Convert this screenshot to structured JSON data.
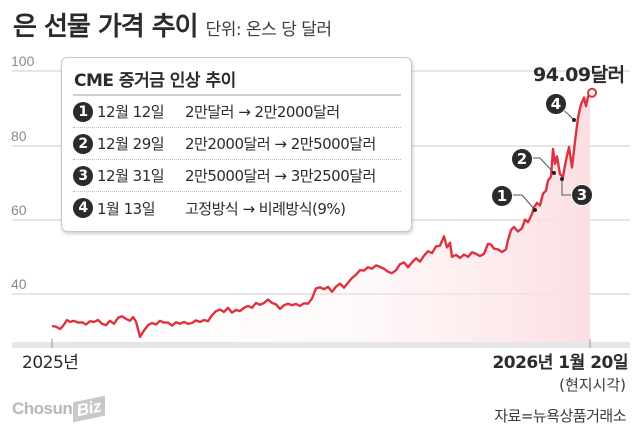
{
  "header": {
    "title": "은 선물 가격 추이",
    "unit": "단위: 온스 당 달러"
  },
  "legend": {
    "title": "CME 증거금 인상 추이",
    "rows": [
      {
        "num": "1",
        "date": "12월 12일",
        "change": "2만달러 → 2만2000달러"
      },
      {
        "num": "2",
        "date": "12월 29일",
        "change": "2만2000달러 → 2만5000달러"
      },
      {
        "num": "3",
        "date": "12월 31일",
        "change": "2만5000달러 → 3만2500달러"
      },
      {
        "num": "4",
        "date": "1월 13일",
        "change": "고정방식 → 비례방식(9%)"
      }
    ]
  },
  "y_axis": {
    "ticks": [
      "100",
      "80",
      "60",
      "40"
    ]
  },
  "x_axis": {
    "start_label": "2025년",
    "end_label": "2026년 1월 20일",
    "end_sub": "(현지시각)"
  },
  "final_value_label": "94.09달러",
  "markers": [
    "1",
    "2",
    "3",
    "4"
  ],
  "footer": {
    "logo_main": "Chosun",
    "logo_biz": "Biz",
    "source": "자료=뉴욕상품거래소"
  },
  "colors": {
    "line": "#e0313f",
    "area": "#fde8ea",
    "grid": "#cccccc",
    "text": "#2b2b2b",
    "marker": "#2b2b2b"
  },
  "chart_data": {
    "type": "line",
    "title": "은 선물 가격 추이",
    "subtitle": "단위: 온스 당 달러",
    "xlabel": "",
    "ylabel": "달러/온스",
    "ylim": [
      30,
      100
    ],
    "yticks": [
      40,
      60,
      80,
      100
    ],
    "grid": true,
    "x_range": [
      "2025년",
      "2026년 1월 20일"
    ],
    "series": [
      {
        "name": "은 선물",
        "points": [
          [
            52,
            31.4
          ],
          [
            56,
            31.2
          ],
          [
            60,
            30.6
          ],
          [
            63,
            31.4
          ],
          [
            67,
            33.0
          ],
          [
            70,
            32.5
          ],
          [
            74,
            32.8
          ],
          [
            78,
            32.3
          ],
          [
            82,
            32.4
          ],
          [
            86,
            31.8
          ],
          [
            90,
            32.7
          ],
          [
            94,
            32.5
          ],
          [
            98,
            33.0
          ],
          [
            102,
            32.0
          ],
          [
            106,
            31.6
          ],
          [
            110,
            32.8
          ],
          [
            114,
            32.0
          ],
          [
            118,
            33.6
          ],
          [
            122,
            34.0
          ],
          [
            126,
            33.3
          ],
          [
            130,
            32.8
          ],
          [
            133,
            33.8
          ],
          [
            136,
            32.6
          ],
          [
            140,
            28.5
          ],
          [
            144,
            30.2
          ],
          [
            148,
            31.6
          ],
          [
            152,
            32.2
          ],
          [
            156,
            31.8
          ],
          [
            160,
            32.8
          ],
          [
            164,
            32.3
          ],
          [
            168,
            32.3
          ],
          [
            172,
            31.5
          ],
          [
            176,
            32.4
          ],
          [
            180,
            32.0
          ],
          [
            184,
            32.5
          ],
          [
            188,
            32.0
          ],
          [
            192,
            32.2
          ],
          [
            196,
            32.9
          ],
          [
            200,
            32.5
          ],
          [
            204,
            33.0
          ],
          [
            208,
            32.7
          ],
          [
            212,
            34.3
          ],
          [
            216,
            35.4
          ],
          [
            220,
            35.8
          ],
          [
            224,
            35.2
          ],
          [
            228,
            36.3
          ],
          [
            232,
            35.0
          ],
          [
            236,
            35.7
          ],
          [
            240,
            35.4
          ],
          [
            244,
            36.3
          ],
          [
            248,
            36.8
          ],
          [
            252,
            36.3
          ],
          [
            256,
            37.6
          ],
          [
            260,
            37.1
          ],
          [
            264,
            37.6
          ],
          [
            268,
            38.5
          ],
          [
            272,
            37.6
          ],
          [
            276,
            37.2
          ],
          [
            280,
            36.0
          ],
          [
            284,
            37.0
          ],
          [
            288,
            37.4
          ],
          [
            292,
            37.0
          ],
          [
            296,
            37.3
          ],
          [
            300,
            36.8
          ],
          [
            304,
            37.5
          ],
          [
            308,
            37.4
          ],
          [
            312,
            38.8
          ],
          [
            316,
            41.5
          ],
          [
            320,
            41.8
          ],
          [
            324,
            41.3
          ],
          [
            328,
            41.9
          ],
          [
            332,
            40.6
          ],
          [
            336,
            42.0
          ],
          [
            340,
            42.8
          ],
          [
            344,
            41.7
          ],
          [
            348,
            43.0
          ],
          [
            352,
            44.3
          ],
          [
            356,
            45.2
          ],
          [
            360,
            46.4
          ],
          [
            364,
            46.3
          ],
          [
            368,
            47.2
          ],
          [
            372,
            46.8
          ],
          [
            376,
            47.7
          ],
          [
            380,
            47.3
          ],
          [
            384,
            46.8
          ],
          [
            388,
            46.0
          ],
          [
            392,
            45.6
          ],
          [
            396,
            46.4
          ],
          [
            400,
            48.0
          ],
          [
            404,
            48.5
          ],
          [
            408,
            47.2
          ],
          [
            412,
            48.5
          ],
          [
            416,
            49.6
          ],
          [
            420,
            48.7
          ],
          [
            424,
            50.3
          ],
          [
            428,
            51.5
          ],
          [
            432,
            51.0
          ],
          [
            436,
            52.8
          ],
          [
            440,
            53.0
          ],
          [
            444,
            55.5
          ],
          [
            447,
            52.5
          ],
          [
            450,
            53.8
          ],
          [
            452,
            50.0
          ],
          [
            456,
            50.5
          ],
          [
            460,
            49.7
          ],
          [
            464,
            50.6
          ],
          [
            468,
            50.0
          ],
          [
            472,
            51.2
          ],
          [
            476,
            50.8
          ],
          [
            480,
            50.2
          ],
          [
            484,
            50.8
          ],
          [
            488,
            53.5
          ],
          [
            491,
            53.3
          ],
          [
            494,
            52.2
          ],
          [
            498,
            52.0
          ],
          [
            502,
            51.3
          ],
          [
            506,
            52.0
          ],
          [
            508,
            54.5
          ],
          [
            511,
            57.2
          ],
          [
            514,
            58.0
          ],
          [
            518,
            56.8
          ],
          [
            522,
            57.7
          ],
          [
            525,
            60.0
          ],
          [
            528,
            59.3
          ],
          [
            532,
            61.5
          ],
          [
            534,
            63.3
          ],
          [
            537,
            64.5
          ],
          [
            540,
            63.8
          ],
          [
            543,
            67.0
          ],
          [
            546,
            67.8
          ],
          [
            548,
            70.5
          ],
          [
            551,
            71.5
          ],
          [
            553,
            79.0
          ],
          [
            555,
            75.0
          ],
          [
            557,
            77.0
          ],
          [
            560,
            72.2
          ],
          [
            563,
            71.5
          ],
          [
            566,
            76.0
          ],
          [
            569,
            79.5
          ],
          [
            572,
            74.0
          ],
          [
            575,
            81.0
          ],
          [
            578,
            87.3
          ],
          [
            581,
            91.0
          ],
          [
            584,
            92.8
          ],
          [
            586,
            90.5
          ],
          [
            588,
            93.0
          ],
          [
            590,
            94.09
          ]
        ],
        "point_format": "[pixel_x, price_usd]"
      }
    ],
    "annotations": [
      {
        "label": "1",
        "text": "12월 12일 증거금 인상",
        "approx_value": 63.8
      },
      {
        "label": "2",
        "text": "12월 29일 증거금 인상",
        "approx_value": 72.2
      },
      {
        "label": "3",
        "text": "12월 31일 증거금 인상",
        "approx_value": 71.5
      },
      {
        "label": "4",
        "text": "1월 13일 비례방식 전환",
        "approx_value": 87.3
      },
      {
        "label": "94.09달러",
        "text": "final value",
        "approx_value": 94.09
      }
    ],
    "final_value": 94.09
  }
}
